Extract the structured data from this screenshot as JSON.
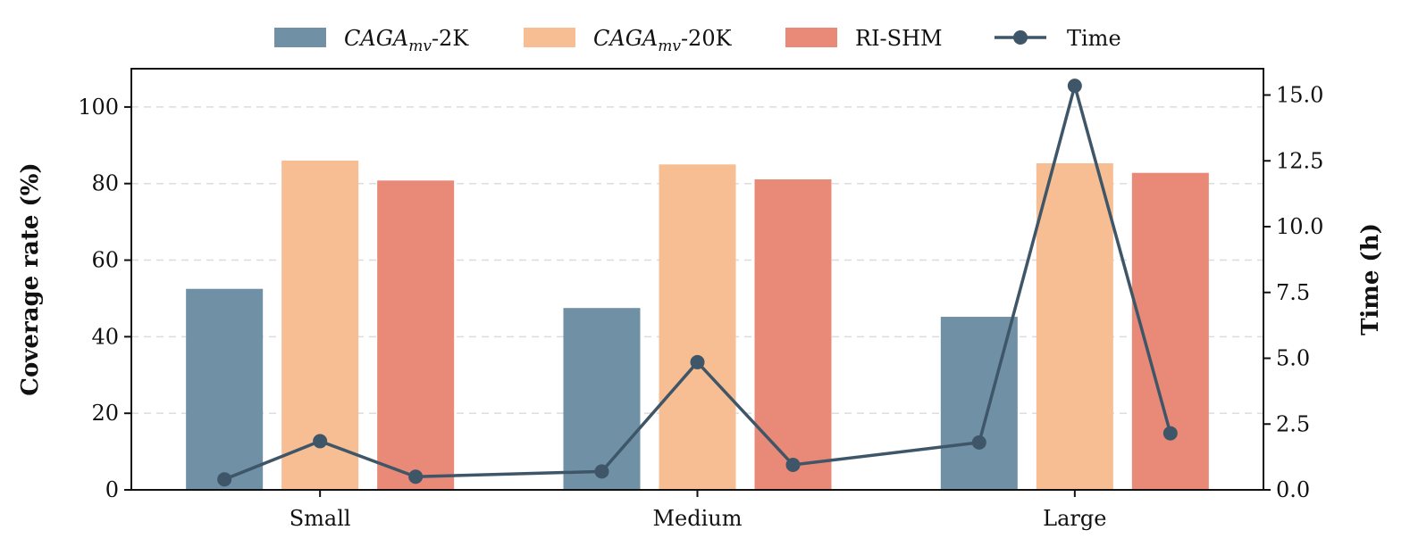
{
  "chart_data": {
    "type": "bar",
    "categories": [
      "Small",
      "Medium",
      "Large"
    ],
    "series": [
      {
        "name": "CAGA",
        "sub": "mv",
        "suffix": "-2K",
        "label": "CAGAmv-2K",
        "color": "#7090a5",
        "values": [
          52.5,
          47.5,
          45.2
        ]
      },
      {
        "name": "CAGA",
        "sub": "mv",
        "suffix": "-20K",
        "label": "CAGAmv-20K",
        "color": "#f7be94",
        "values": [
          86.0,
          85.0,
          85.3
        ]
      },
      {
        "name": "RI-SHM",
        "label": "RI-SHM",
        "color": "#e98a78",
        "values": [
          80.8,
          81.1,
          82.8
        ]
      }
    ],
    "line_series": {
      "name": "Time",
      "color": "#3e5668",
      "values": [
        0.4,
        1.85,
        0.5,
        0.7,
        4.85,
        0.95,
        1.8,
        15.35,
        2.15
      ]
    },
    "ylabel": "Coverage rate (%)",
    "ylabel2": "Time (h)",
    "ylim": [
      0,
      110
    ],
    "ylim2": [
      0,
      16
    ],
    "yticks": [
      "0",
      "20",
      "40",
      "60",
      "80",
      "100"
    ],
    "yticks2": [
      "0.0",
      "2.5",
      "5.0",
      "7.5",
      "10.0",
      "12.5",
      "15.0"
    ],
    "grid": true,
    "legend_position": "top-center"
  }
}
